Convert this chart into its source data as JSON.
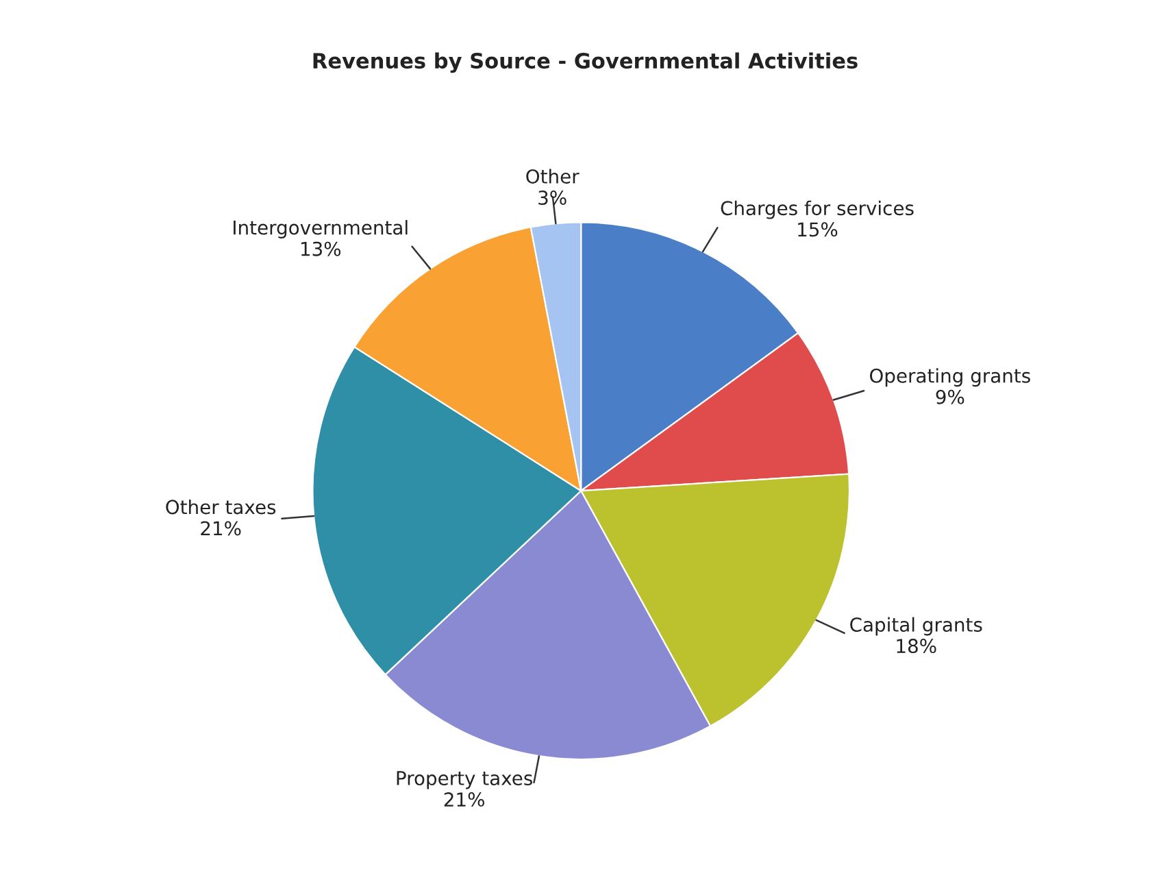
{
  "chart_data": {
    "type": "pie",
    "title": "Revenues by Source - Governmental Activities",
    "categories": [
      "Charges for services",
      "Operating grants",
      "Capital grants",
      "Property taxes",
      "Other taxes",
      "Intergovernmental",
      "Other"
    ],
    "values": [
      15,
      9,
      18,
      21,
      21,
      13,
      3
    ],
    "value_labels": [
      "15%",
      "9%",
      "18%",
      "21%",
      "21%",
      "13%",
      "3%"
    ],
    "colors": [
      "#4a7fc8",
      "#e04b4b",
      "#bcc12e",
      "#8a8ad2",
      "#2f8fa6",
      "#f9a233",
      "#a6c4f2"
    ],
    "legend": false
  }
}
